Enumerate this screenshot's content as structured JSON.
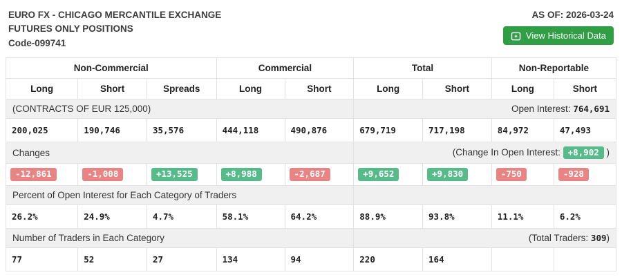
{
  "header": {
    "title_line1": "EURO FX - CHICAGO MERCANTILE EXCHANGE",
    "title_line2": "FUTURES ONLY POSITIONS",
    "title_line3": "Code-099741",
    "as_of": "AS OF: 2026-03-24",
    "button_label": "View Historical Data"
  },
  "table": {
    "groups": [
      {
        "label": "Non-Commercial",
        "span": 3
      },
      {
        "label": "Commercial",
        "span": 2
      },
      {
        "label": "Total",
        "span": 2
      },
      {
        "label": "Non-Reportable",
        "span": 2
      }
    ],
    "columns": [
      "Long",
      "Short",
      "Spreads",
      "Long",
      "Short",
      "Long",
      "Short",
      "Long",
      "Short"
    ],
    "contracts_note": "(CONTRACTS OF EUR 125,000)",
    "open_interest_label": "Open Interest: ",
    "open_interest_value": "764,691",
    "positions": [
      "200,025",
      "190,746",
      "35,576",
      "444,118",
      "490,876",
      "679,719",
      "717,198",
      "84,972",
      "47,493"
    ],
    "changes_label": "Changes",
    "change_oi_prefix": "(Change In Open Interest: ",
    "change_oi_value": "+8,902",
    "change_oi_suffix": " )",
    "changes": [
      "-12,861",
      "-1,008",
      "+13,525",
      "+8,988",
      "-2,687",
      "+9,652",
      "+9,830",
      "-750",
      "-928"
    ],
    "percent_label": "Percent of Open Interest for Each Category of Traders",
    "percents": [
      "26.2%",
      "24.9%",
      "4.7%",
      "58.1%",
      "64.2%",
      "88.9%",
      "93.8%",
      "11.1%",
      "6.2%"
    ],
    "traders_label": "Number of Traders in Each Category",
    "total_traders_prefix": "(Total Traders: ",
    "total_traders_value": "309",
    "total_traders_suffix": ")",
    "traders": [
      "77",
      "52",
      "27",
      "134",
      "94",
      "220",
      "164",
      "",
      ""
    ]
  },
  "colors": {
    "positive": "#57ba8a",
    "negative": "#e88484",
    "button": "#2f9e44",
    "band_bg": "#f0f0f0"
  }
}
